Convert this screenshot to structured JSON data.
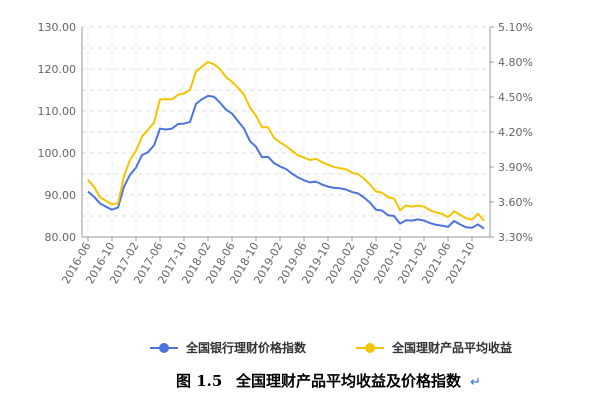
{
  "chart_data": {
    "type": "line",
    "caption_label": "图 1.5",
    "caption_title": "全国理财产品平均收益及价格指数",
    "caption_mark": "↵",
    "y_left": {
      "range": [
        80,
        130
      ],
      "ticks": [
        "80.00",
        "85.00",
        "90.00",
        "95.00",
        "100.00",
        "105.00",
        "110.00",
        "115.00",
        "120.00",
        "125.00",
        "130.00"
      ],
      "labeled_ticks": [
        "80.00",
        "90.00",
        "100.00",
        "110.00",
        "120.00",
        "130.00"
      ]
    },
    "y_right": {
      "range": [
        3.3,
        5.1
      ],
      "labeled_ticks": [
        "3.30%",
        "3.60%",
        "3.90%",
        "4.20%",
        "4.50%",
        "4.80%",
        "5.10%"
      ]
    },
    "x_labels": [
      "2016-06",
      "2016-10",
      "2017-02",
      "2017-06",
      "2017-10",
      "2018-02",
      "2018-06",
      "2018-10",
      "2019-02",
      "2019-06",
      "2019-10",
      "2020-02",
      "2020-06",
      "2020-10",
      "2021-02",
      "2021-06",
      "2021-10"
    ],
    "months": [
      "2016-06",
      "2016-07",
      "2016-08",
      "2016-09",
      "2016-10",
      "2016-11",
      "2016-12",
      "2017-01",
      "2017-02",
      "2017-03",
      "2017-04",
      "2017-05",
      "2017-06",
      "2017-07",
      "2017-08",
      "2017-09",
      "2017-10",
      "2017-11",
      "2017-12",
      "2018-01",
      "2018-02",
      "2018-03",
      "2018-04",
      "2018-05",
      "2018-06",
      "2018-07",
      "2018-08",
      "2018-09",
      "2018-10",
      "2018-11",
      "2018-12",
      "2019-01",
      "2019-02",
      "2019-03",
      "2019-04",
      "2019-05",
      "2019-06",
      "2019-07",
      "2019-08",
      "2019-09",
      "2019-10",
      "2019-11",
      "2019-12",
      "2020-01",
      "2020-02",
      "2020-03",
      "2020-04",
      "2020-05",
      "2020-06",
      "2020-07",
      "2020-08",
      "2020-09",
      "2020-10",
      "2020-11",
      "2020-12",
      "2021-01",
      "2021-02",
      "2021-03",
      "2021-04",
      "2021-05",
      "2021-06",
      "2021-07",
      "2021-08",
      "2021-09",
      "2021-10",
      "2021-11",
      "2021-12"
    ],
    "series": [
      {
        "name": "全国银行理财价格指数",
        "axis": "left",
        "color": "#4e73df",
        "values": [
          90.8,
          89.6,
          88.0,
          87.2,
          86.5,
          87.0,
          92.0,
          94.8,
          96.5,
          99.5,
          100.2,
          101.8,
          105.8,
          105.6,
          105.8,
          106.9,
          107.0,
          107.4,
          111.7,
          112.8,
          113.6,
          113.4,
          112.0,
          110.3,
          109.4,
          107.6,
          105.8,
          102.8,
          101.5,
          99.0,
          99.1,
          97.6,
          96.8,
          96.2,
          95.1,
          94.2,
          93.5,
          93.0,
          93.2,
          92.5,
          92.0,
          91.7,
          91.6,
          91.3,
          90.7,
          90.4,
          89.4,
          88.2,
          86.5,
          86.3,
          85.2,
          85.0,
          83.2,
          84.0,
          83.9,
          84.2,
          83.9,
          83.3,
          82.9,
          82.7,
          82.4,
          83.8,
          83.0,
          82.3,
          82.2,
          83.0,
          82.0
        ]
      },
      {
        "name": "全国理财产品平均收益",
        "axis": "right",
        "color": "#f5c400",
        "values": [
          3.79,
          3.73,
          3.64,
          3.61,
          3.58,
          3.59,
          3.82,
          3.96,
          4.04,
          4.16,
          4.22,
          4.28,
          4.48,
          4.48,
          4.48,
          4.52,
          4.53,
          4.56,
          4.72,
          4.76,
          4.8,
          4.78,
          4.74,
          4.67,
          4.63,
          4.58,
          4.52,
          4.41,
          4.34,
          4.24,
          4.24,
          4.15,
          4.11,
          4.08,
          4.04,
          4.0,
          3.98,
          3.96,
          3.97,
          3.94,
          3.92,
          3.9,
          3.89,
          3.88,
          3.85,
          3.84,
          3.8,
          3.75,
          3.69,
          3.68,
          3.64,
          3.63,
          3.53,
          3.57,
          3.56,
          3.57,
          3.56,
          3.53,
          3.51,
          3.5,
          3.47,
          3.52,
          3.49,
          3.46,
          3.45,
          3.5,
          3.44
        ]
      }
    ]
  }
}
